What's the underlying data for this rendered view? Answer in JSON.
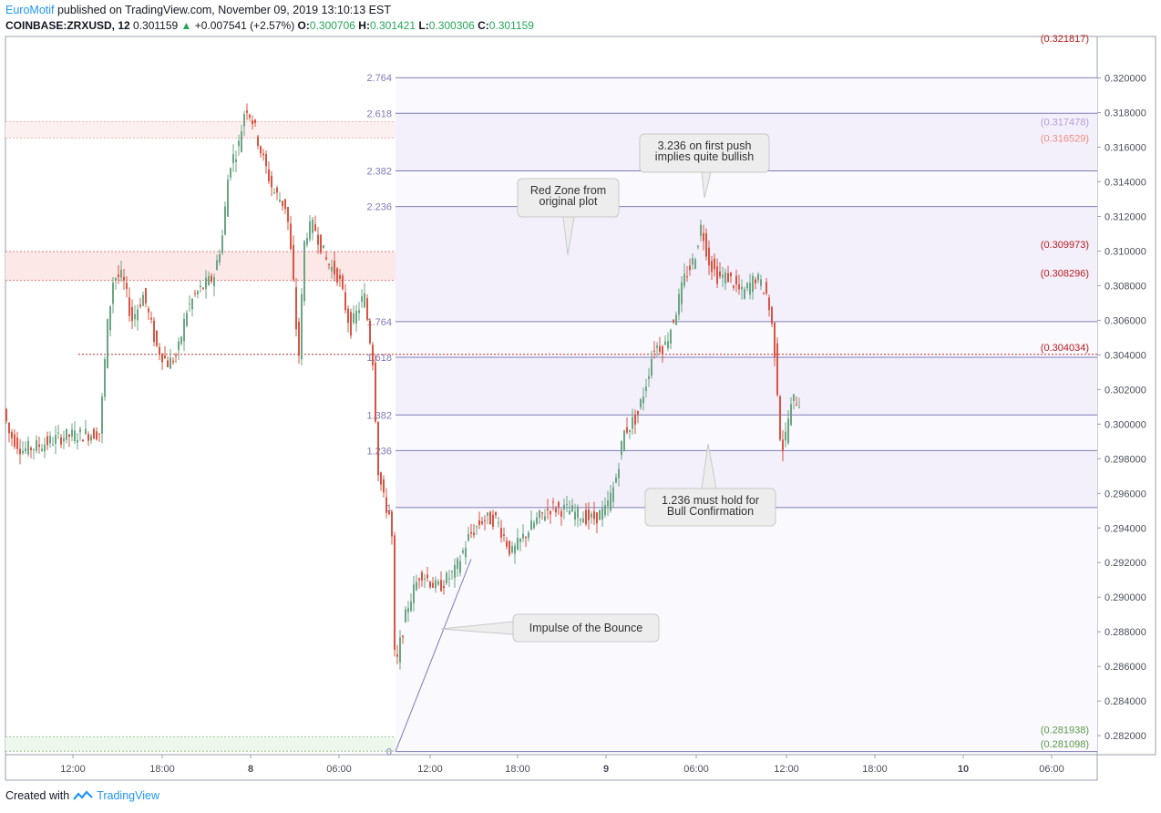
{
  "header": {
    "author": "EuroMotif",
    "published": "published on TradingView.com, November 09, 2019 13:10:13 EST",
    "symbol": "COINBASE:ZRXUSD, 12",
    "last": "0.301159",
    "change": "+0.007541 (+2.57%)",
    "o_label": "O:",
    "o": "0.300706",
    "h_label": "H:",
    "h": "0.301421",
    "l_label": "L:",
    "l": "0.300306",
    "c_label": "C:",
    "c": "0.301159"
  },
  "footer": {
    "created_with": "Created with",
    "brand": "TradingView"
  },
  "colors": {
    "up": "#6ba583",
    "down": "#d75442",
    "fib_line": "#7e7bb7",
    "fib_fill": "#f3f0fb",
    "fib_fill_light": "#faf9fd",
    "red_zone": "#fde8e8",
    "red_line": "#c2282f",
    "red_label": "#b71c1c",
    "pink_label": "#f28b82",
    "purple_label": "#b39ddb",
    "green_zone": "#eef7ec",
    "green_label": "#5b9a4b",
    "grid": "#f0f3fa"
  },
  "chart_data": {
    "type": "candlestick",
    "ylim": [
      0.2809,
      0.3224
    ],
    "y_ticks": [
      "0.282000",
      "0.284000",
      "0.286000",
      "0.288000",
      "0.290000",
      "0.292000",
      "0.294000",
      "0.296000",
      "0.298000",
      "0.300000",
      "0.302000",
      "0.304000",
      "0.306000",
      "0.308000",
      "0.310000",
      "0.312000",
      "0.314000",
      "0.316000",
      "0.318000",
      "0.320000"
    ],
    "x_ticks": [
      "12:00",
      "18:00",
      "8",
      "06:00",
      "12:00",
      "18:00",
      "9",
      "06:00",
      "12:00",
      "18:00",
      "10",
      "06:00"
    ],
    "x_ticks_bold": [
      "8",
      "9",
      "10"
    ],
    "price_path": [
      [
        0,
        0.302
      ],
      [
        10,
        0.2995
      ],
      [
        25,
        0.2985
      ],
      [
        45,
        0.2988
      ],
      [
        70,
        0.2993
      ],
      [
        110,
        0.2995
      ],
      [
        118,
        0.3055
      ],
      [
        125,
        0.3085
      ],
      [
        135,
        0.3085
      ],
      [
        145,
        0.306
      ],
      [
        158,
        0.3075
      ],
      [
        172,
        0.3045
      ],
      [
        185,
        0.3035
      ],
      [
        195,
        0.304
      ],
      [
        205,
        0.3065
      ],
      [
        215,
        0.3075
      ],
      [
        225,
        0.308
      ],
      [
        235,
        0.3085
      ],
      [
        245,
        0.311
      ],
      [
        252,
        0.315
      ],
      [
        262,
        0.316
      ],
      [
        270,
        0.3185
      ],
      [
        278,
        0.3175
      ],
      [
        288,
        0.3155
      ],
      [
        300,
        0.3135
      ],
      [
        315,
        0.3125
      ],
      [
        322,
        0.3085
      ],
      [
        328,
        0.3035
      ],
      [
        335,
        0.311
      ],
      [
        345,
        0.3115
      ],
      [
        358,
        0.3095
      ],
      [
        372,
        0.3085
      ],
      [
        385,
        0.3055
      ],
      [
        400,
        0.3075
      ],
      [
        410,
        0.3035
      ],
      [
        415,
        0.2975
      ],
      [
        422,
        0.2955
      ],
      [
        430,
        0.2945
      ],
      [
        434,
        0.2855
      ],
      [
        440,
        0.2875
      ],
      [
        448,
        0.2895
      ],
      [
        462,
        0.2915
      ],
      [
        480,
        0.2905
      ],
      [
        500,
        0.2915
      ],
      [
        515,
        0.2935
      ],
      [
        530,
        0.2945
      ],
      [
        545,
        0.2945
      ],
      [
        562,
        0.2925
      ],
      [
        575,
        0.2935
      ],
      [
        590,
        0.2945
      ],
      [
        605,
        0.2952
      ],
      [
        625,
        0.295
      ],
      [
        650,
        0.2945
      ],
      [
        665,
        0.295
      ],
      [
        675,
        0.2965
      ],
      [
        685,
        0.2995
      ],
      [
        700,
        0.3005
      ],
      [
        710,
        0.3025
      ],
      [
        718,
        0.3045
      ],
      [
        730,
        0.3045
      ],
      [
        742,
        0.3065
      ],
      [
        752,
        0.3085
      ],
      [
        762,
        0.3095
      ],
      [
        770,
        0.3115
      ],
      [
        778,
        0.3095
      ],
      [
        788,
        0.3085
      ],
      [
        800,
        0.3085
      ],
      [
        815,
        0.3075
      ],
      [
        830,
        0.3085
      ],
      [
        842,
        0.3075
      ],
      [
        848,
        0.3055
      ],
      [
        852,
        0.3035
      ],
      [
        856,
        0.2995
      ],
      [
        860,
        0.2985
      ],
      [
        866,
        0.3005
      ],
      [
        872,
        0.3015
      ],
      [
        878,
        0.3012
      ]
    ],
    "fib": {
      "levels": [
        "0",
        "1",
        "1.236",
        "1.382",
        "1.618",
        "1.764",
        "2.236",
        "2.382",
        "2.618",
        "2.764"
      ],
      "prices": [
        0.28108,
        0.29518,
        0.29847,
        0.30053,
        0.30386,
        0.30592,
        0.31257,
        0.31463,
        0.31796,
        0.32002
      ]
    },
    "zones": [
      {
        "top": 0.30997,
        "bottom": 0.3083,
        "label_top": "(0.309973)",
        "label_bottom": "(0.308296)",
        "kind": "red"
      },
      {
        "top": 0.31748,
        "bottom": 0.31653,
        "label_top": "(0.317478)",
        "label_bottom": "(0.316529)",
        "kind": "pink"
      },
      {
        "top": 0.28194,
        "bottom": 0.2811,
        "label_top": "(0.281938)",
        "label_bottom": "(0.281098)",
        "kind": "green"
      }
    ],
    "red_line": {
      "price": 0.30403,
      "label": "(0.304034)"
    },
    "top_clipped_label": "(0.321817)",
    "annotations": [
      {
        "lines": [
          "3.236 on first push",
          "implies quite bullish"
        ]
      },
      {
        "lines": [
          "Red Zone from",
          "original plot"
        ]
      },
      {
        "lines": [
          "1.236 must hold for",
          "Bull Confirmation"
        ]
      },
      {
        "lines": [
          "Impulse of the Bounce"
        ]
      }
    ]
  }
}
